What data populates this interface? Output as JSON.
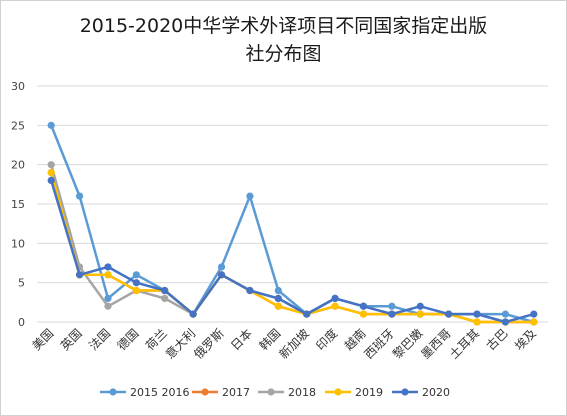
{
  "chart_data": {
    "type": "line",
    "title_line1": "2015-2020中华学术外译项目不同国家指定出版",
    "title_line2": "社分布图",
    "categories": [
      "美国",
      "英国",
      "法国",
      "德国",
      "荷兰",
      "意大利",
      "俄罗斯",
      "日本",
      "韩国",
      "新加坡",
      "印度",
      "越南",
      "西班牙",
      "黎巴嫩",
      "墨西哥",
      "土耳其",
      "古巴",
      "埃及"
    ],
    "ylim": [
      0,
      30
    ],
    "yticks": [
      0,
      5,
      10,
      15,
      20,
      25,
      30
    ],
    "grid": true,
    "legend_position": "bottom",
    "series": [
      {
        "name": "2015 2016",
        "color": "#5b9bd5",
        "values": [
          25,
          16,
          3,
          6,
          4,
          1,
          7,
          16,
          4,
          1,
          3,
          2,
          2,
          1,
          1,
          1,
          1,
          0
        ]
      },
      {
        "name": "2017",
        "color": "#ed7d31",
        "values": [
          19,
          6,
          6,
          4,
          4,
          1,
          6,
          4,
          2,
          1,
          2,
          1,
          1,
          1,
          1,
          0,
          0,
          0
        ]
      },
      {
        "name": "2018",
        "color": "#a5a5a5",
        "values": [
          20,
          7,
          2,
          4,
          3,
          1,
          6,
          4,
          3,
          1,
          3,
          2,
          1,
          1,
          1,
          1,
          0,
          0
        ]
      },
      {
        "name": "2019",
        "color": "#ffc000",
        "values": [
          19,
          6,
          6,
          4,
          4,
          1,
          6,
          4,
          2,
          1,
          2,
          1,
          1,
          1,
          1,
          0,
          0,
          0
        ]
      },
      {
        "name": "2020",
        "color": "#4472c4",
        "values": [
          18,
          6,
          7,
          5,
          4,
          1,
          6,
          4,
          3,
          1,
          3,
          2,
          1,
          2,
          1,
          1,
          0,
          1
        ]
      }
    ]
  }
}
